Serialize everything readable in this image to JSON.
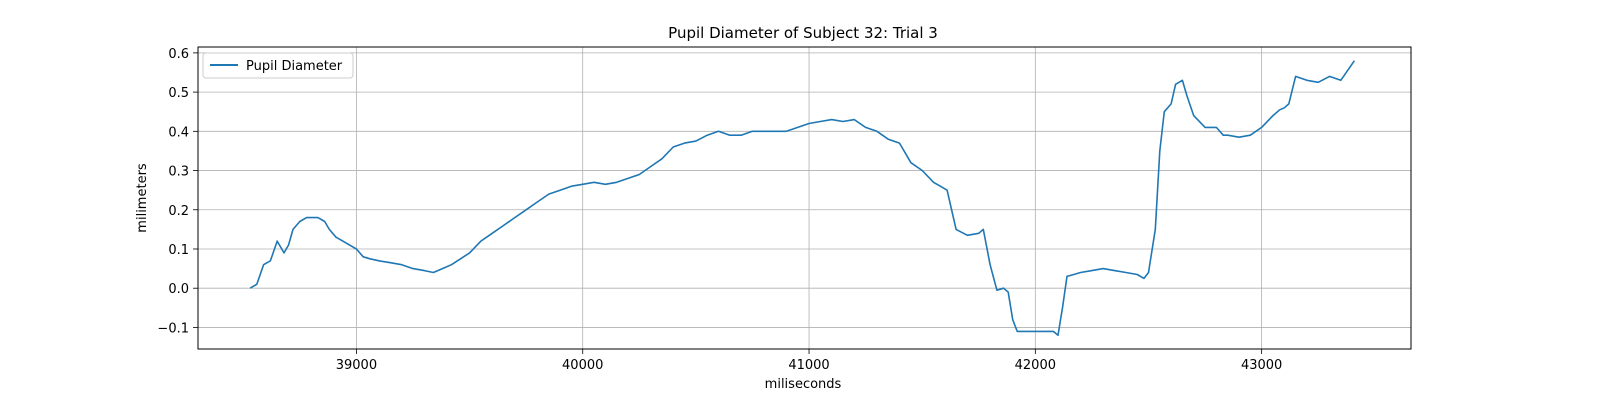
{
  "chart_data": {
    "type": "line",
    "title": "Pupil Diameter of Subject 32: Trial 3",
    "xlabel": "miliseconds",
    "ylabel": "milimeters",
    "xlim": [
      38300,
      43660
    ],
    "ylim": [
      -0.155,
      0.615
    ],
    "xticks": [
      39000,
      40000,
      41000,
      42000,
      43000
    ],
    "yticks": [
      -0.1,
      0.0,
      0.1,
      0.2,
      0.3,
      0.4,
      0.5,
      0.6
    ],
    "xtick_labels": [
      "39000",
      "40000",
      "41000",
      "42000",
      "43000"
    ],
    "ytick_labels": [
      "−0.1",
      "0.0",
      "0.1",
      "0.2",
      "0.3",
      "0.4",
      "0.5",
      "0.6"
    ],
    "grid": true,
    "legend": {
      "position": "top-left",
      "entries": [
        "Pupil Diameter"
      ]
    },
    "series": [
      {
        "name": "Pupil Diameter",
        "color": "#1f77b4",
        "x": [
          38530,
          38560,
          38590,
          38620,
          38650,
          38680,
          38700,
          38720,
          38750,
          38780,
          38800,
          38830,
          38860,
          38880,
          38910,
          38940,
          38970,
          39000,
          39030,
          39060,
          39100,
          39150,
          39200,
          39250,
          39300,
          39340,
          39380,
          39420,
          39460,
          39500,
          39550,
          39600,
          39650,
          39700,
          39750,
          39800,
          39850,
          39900,
          39950,
          40000,
          40050,
          40100,
          40150,
          40200,
          40250,
          40300,
          40350,
          40400,
          40450,
          40500,
          40550,
          40600,
          40650,
          40700,
          40750,
          40800,
          40850,
          40900,
          40950,
          41000,
          41050,
          41100,
          41150,
          41200,
          41250,
          41300,
          41350,
          41400,
          41450,
          41500,
          41550,
          41580,
          41610,
          41650,
          41700,
          41750,
          41770,
          41800,
          41830,
          41860,
          41880,
          41900,
          41920,
          41950,
          42000,
          42050,
          42080,
          42100,
          42120,
          42140,
          42170,
          42200,
          42250,
          42300,
          42350,
          42400,
          42450,
          42480,
          42500,
          42530,
          42550,
          42570,
          42600,
          42620,
          42650,
          42670,
          42700,
          42750,
          42800,
          42830,
          42850,
          42900,
          42950,
          43000,
          43050,
          43080,
          43100,
          43120,
          43150,
          43200,
          43250,
          43300,
          43350,
          43410
        ],
        "y": [
          0.0,
          0.01,
          0.06,
          0.07,
          0.12,
          0.09,
          0.11,
          0.15,
          0.17,
          0.18,
          0.18,
          0.18,
          0.17,
          0.15,
          0.13,
          0.12,
          0.11,
          0.1,
          0.08,
          0.075,
          0.07,
          0.065,
          0.06,
          0.05,
          0.045,
          0.04,
          0.05,
          0.06,
          0.075,
          0.09,
          0.12,
          0.14,
          0.16,
          0.18,
          0.2,
          0.22,
          0.24,
          0.25,
          0.26,
          0.265,
          0.27,
          0.265,
          0.27,
          0.28,
          0.29,
          0.31,
          0.33,
          0.36,
          0.37,
          0.375,
          0.39,
          0.4,
          0.39,
          0.39,
          0.4,
          0.4,
          0.4,
          0.4,
          0.41,
          0.42,
          0.425,
          0.43,
          0.425,
          0.43,
          0.41,
          0.4,
          0.38,
          0.37,
          0.32,
          0.3,
          0.27,
          0.26,
          0.25,
          0.15,
          0.135,
          0.14,
          0.15,
          0.06,
          -0.005,
          0.0,
          -0.01,
          -0.08,
          -0.11,
          -0.11,
          -0.11,
          -0.11,
          -0.11,
          -0.12,
          -0.05,
          0.03,
          0.035,
          0.04,
          0.045,
          0.05,
          0.045,
          0.04,
          0.035,
          0.025,
          0.04,
          0.15,
          0.35,
          0.45,
          0.47,
          0.52,
          0.53,
          0.49,
          0.44,
          0.41,
          0.41,
          0.39,
          0.39,
          0.385,
          0.39,
          0.41,
          0.44,
          0.455,
          0.46,
          0.47,
          0.54,
          0.53,
          0.525,
          0.54,
          0.53,
          0.58
        ]
      }
    ]
  }
}
